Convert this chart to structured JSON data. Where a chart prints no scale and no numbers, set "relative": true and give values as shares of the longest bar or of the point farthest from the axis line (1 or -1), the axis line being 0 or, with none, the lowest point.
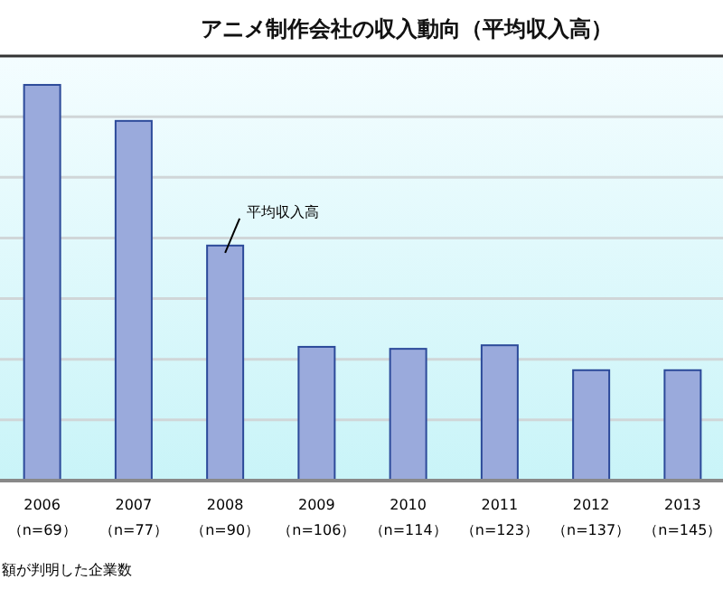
{
  "chart_data": {
    "type": "bar",
    "title": "アニメ制作会社の収入動向（平均収入高）",
    "relative": true,
    "grid": "y",
    "legend": false,
    "categories": [
      "2006\n（n=69）",
      "2007\n（n=77）",
      "2008\n（n=90）",
      "2009\n（n=106）",
      "2010\n（n=114）",
      "2011\n（n=123）",
      "2012\n（n=137）",
      "2013\n（n=145）"
    ],
    "series": [
      {
        "name": "平均収入高",
        "color": "#9aaadc",
        "values": [
          1,
          0.909,
          0.594,
          0.338,
          0.333,
          0.342,
          0.279,
          0.279
        ]
      }
    ],
    "annotations": [
      "額が判明した企業数"
    ]
  }
}
